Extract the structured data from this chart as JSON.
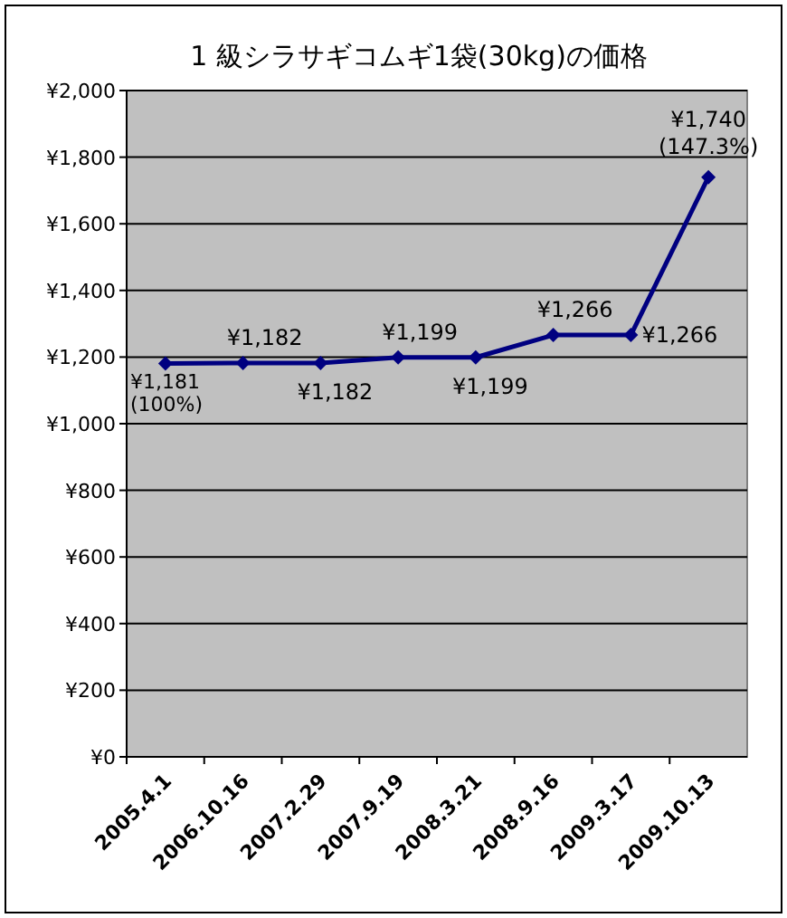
{
  "chart_data": {
    "type": "line",
    "title": "1 級シラサギコムギ1袋(30kg)の価格",
    "categories": [
      "2005.4.1",
      "2006.10.16",
      "2007.2.29",
      "2007.9.19",
      "2008.3.21",
      "2008.9.16",
      "2009.3.17",
      "2009.10.13"
    ],
    "series": [
      {
        "color": "#000080",
        "values": [
          1181,
          1182,
          1182,
          1199,
          1199,
          1266,
          1266,
          1740
        ],
        "value_labels": [
          "¥1,181 (100%)",
          "¥1,182",
          "¥1,182",
          "¥1,199",
          "¥1,199",
          "¥1,266",
          "¥1,266",
          "¥1,740 (147.3%)"
        ]
      }
    ],
    "ylim": [
      0,
      2000
    ],
    "yticks": [
      {
        "value": 0,
        "label": "¥0"
      },
      {
        "value": 200,
        "label": "¥200"
      },
      {
        "value": 400,
        "label": "¥400"
      },
      {
        "value": 600,
        "label": "¥600"
      },
      {
        "value": 800,
        "label": "¥800"
      },
      {
        "value": 1000,
        "label": "¥1,000"
      },
      {
        "value": 1200,
        "label": "¥1,200"
      },
      {
        "value": 1400,
        "label": "¥1,400"
      },
      {
        "value": 1600,
        "label": "¥1,600"
      },
      {
        "value": 1800,
        "label": "¥1,800"
      },
      {
        "value": 2000,
        "label": "¥2,000"
      }
    ],
    "grid": "y",
    "marker": "diamond",
    "line_style": "solid"
  }
}
